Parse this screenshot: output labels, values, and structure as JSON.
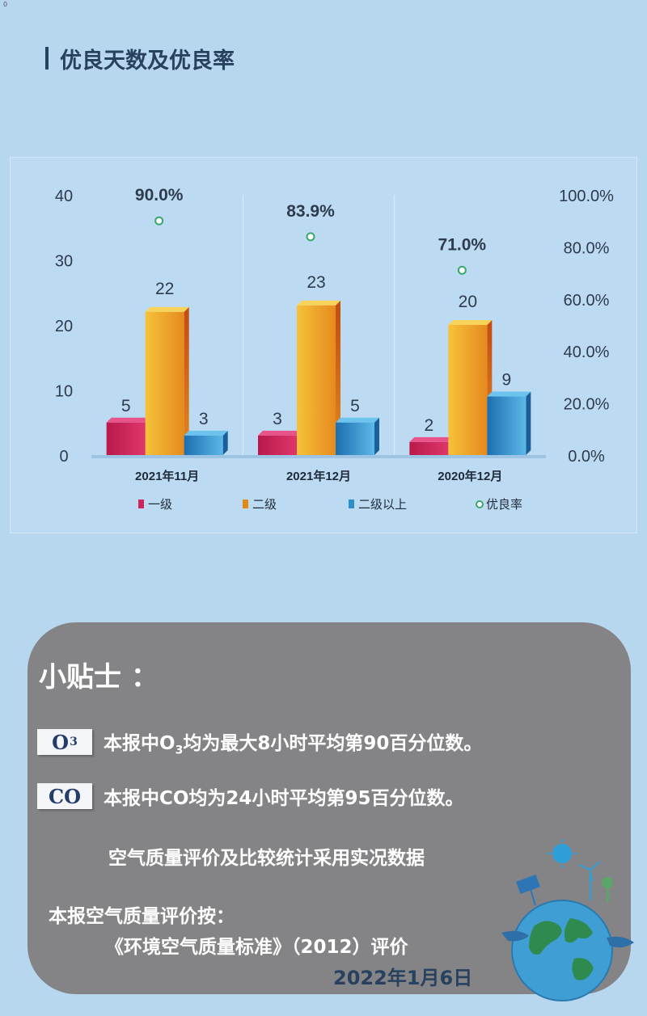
{
  "corner_mark": "0",
  "section": {
    "title": "优良天数及优良率"
  },
  "chart_data": {
    "type": "bar",
    "categories": [
      "2021年11月",
      "2021年12月",
      "2020年12月"
    ],
    "series": [
      {
        "name": "一级",
        "values": [
          5,
          3,
          2
        ],
        "color": "#d0245c"
      },
      {
        "name": "二级",
        "values": [
          22,
          23,
          20
        ],
        "color": "#e08a1a"
      },
      {
        "name": "二级以上",
        "values": [
          3,
          5,
          9
        ],
        "color": "#2f8fcd"
      }
    ],
    "rate_series": {
      "name": "优良率",
      "values": [
        90.0,
        83.9,
        71.0
      ],
      "labels": [
        "90.0%",
        "83.9%",
        "71.0%"
      ],
      "color": "#3aa86a"
    },
    "y_left": {
      "min": 0,
      "max": 40,
      "ticks": [
        "0",
        "10",
        "20",
        "30",
        "40"
      ]
    },
    "y_right": {
      "min": 0,
      "max": 100,
      "ticks": [
        "0.0%",
        "20.0%",
        "40.0%",
        "60.0%",
        "80.0%",
        "100.0%"
      ]
    },
    "legend_position": "bottom"
  },
  "tips": {
    "title": "小贴士 ：",
    "o3": {
      "tag": "O",
      "tag_sub": "3",
      "text_a": "本报中O",
      "text_sub": "3",
      "text_b": "均为最大8小时平均第90百分位数。"
    },
    "co": {
      "tag": "CO",
      "text": "本报中CO均为24小时平均第95百分位数。"
    },
    "note1": "空气质量评价及比较统计采用实况数据",
    "note2": "本报空气质量评价按：",
    "note3": "《环境空气质量标准》（2012）评价",
    "date": "2022年1月6日"
  }
}
